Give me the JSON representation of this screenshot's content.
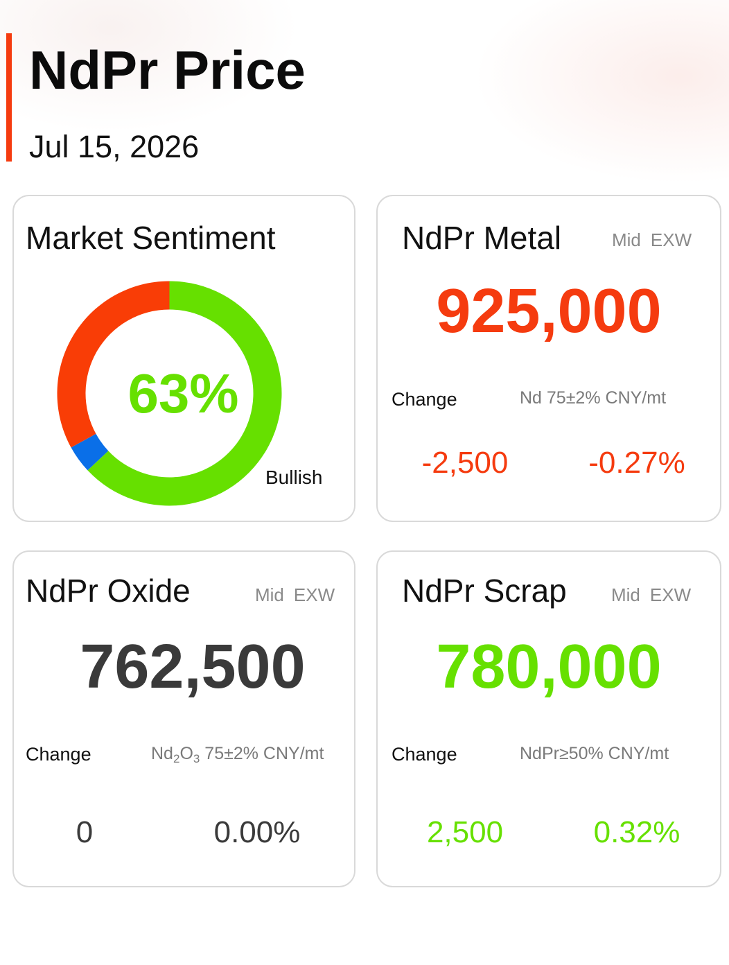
{
  "header": {
    "title": "NdPr Price",
    "date": "Jul 15, 2026"
  },
  "colors": {
    "accent": "#f53b0f",
    "up": "#66e000",
    "down": "#f53b0f",
    "neutral": "#3a3a3a",
    "sentiment_bullish": "#66e000",
    "sentiment_neutral": "#0a6fe8",
    "sentiment_bearish": "#f93d06"
  },
  "sentiment": {
    "title": "Market Sentiment",
    "percent_label": "63%",
    "label": "Bullish",
    "segments": [
      {
        "key": "bullish",
        "value": 63,
        "color": "#66e000"
      },
      {
        "key": "neutral",
        "value": 4,
        "color": "#0a6fe8"
      },
      {
        "key": "bearish",
        "value": 33,
        "color": "#f93d06"
      }
    ]
  },
  "metal": {
    "title": "NdPr Metal",
    "meta_mid": "Mid",
    "meta_exw": "EXW",
    "price": "925,000",
    "change_label": "Change",
    "spec": "Nd 75±2% CNY/mt",
    "change_abs": "-2,500",
    "change_pct": "-0.27%"
  },
  "oxide": {
    "title": "NdPr Oxide",
    "meta_mid": "Mid",
    "meta_exw": "EXW",
    "price": "762,500",
    "change_label": "Change",
    "spec_nd": "Nd",
    "spec_nd_sub": "2",
    "spec_o": "O",
    "spec_o_sub": "3",
    "spec_rest": " 75±2% CNY/mt",
    "change_abs": "0",
    "change_pct": "0.00%"
  },
  "scrap": {
    "title": "NdPr Scrap",
    "meta_mid": "Mid",
    "meta_exw": "EXW",
    "price": "780,000",
    "change_label": "Change",
    "spec": "NdPr≥50% CNY/mt",
    "change_abs": "2,500",
    "change_pct": "0.32%"
  }
}
